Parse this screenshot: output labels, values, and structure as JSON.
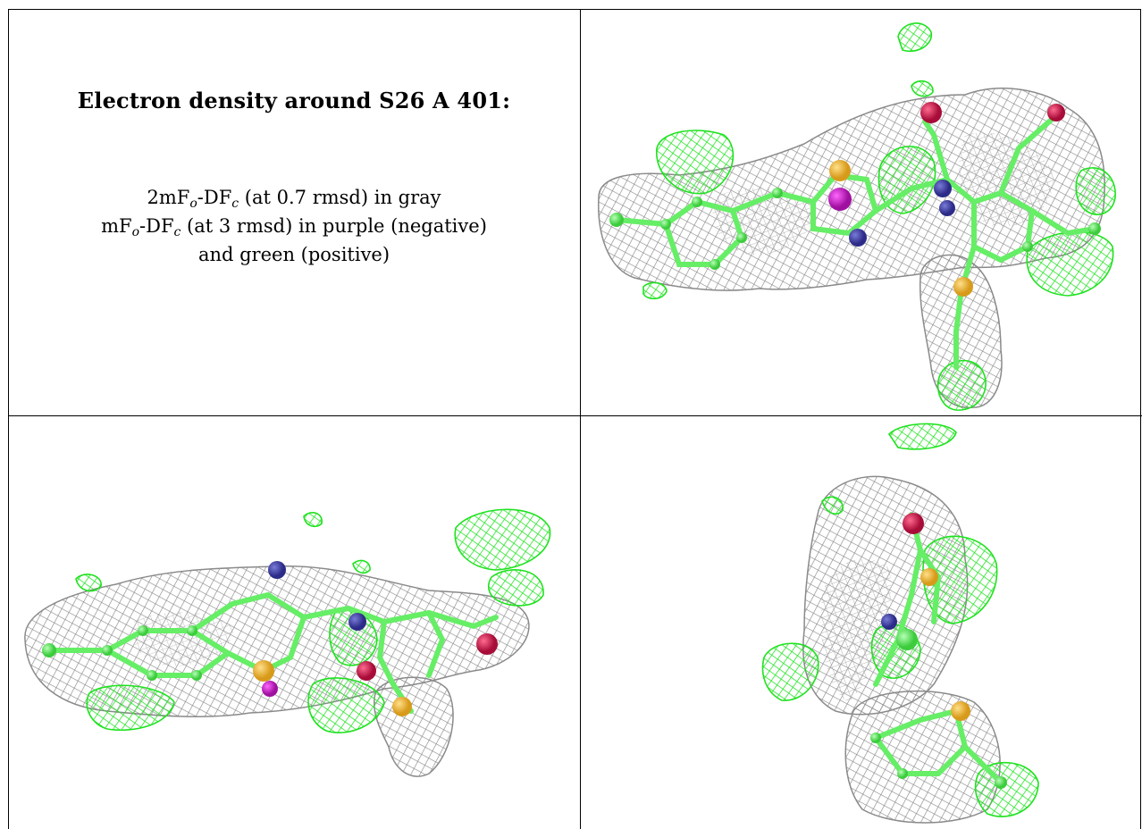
{
  "caption": {
    "title": "Electron density around S26 A 401:",
    "line1": {
      "pre": "2mF",
      "sub1": "o",
      "mid": "-DF",
      "sub2": "c",
      "post": " (at 0.7 rmsd) in gray"
    },
    "line2": {
      "pre": "mF",
      "sub1": "o",
      "mid": "-DF",
      "sub2": "c",
      "post": " (at 3 rmsd) in purple (negative)"
    },
    "line3": "and green (positive)"
  },
  "colors": {
    "mesh_gray": "#8a8a8a",
    "mesh_green": "#1fe21f",
    "bond_green": "#66ee66",
    "atom_yellow": "#f2b632",
    "atom_blue": "#3b3ba8",
    "atom_red": "#d0164e",
    "atom_magenta": "#cc22cc"
  },
  "panels": {
    "top_right": "view-1",
    "bottom_left": "view-2",
    "bottom_right": "view-3"
  }
}
